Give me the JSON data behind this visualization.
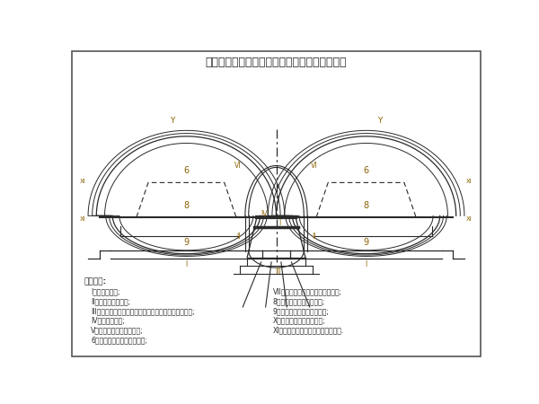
{
  "title": "连拱隧道中导洞法合阶分步开挖施工作业程序图",
  "title_fontsize": 9,
  "bg_color": "#ffffff",
  "line_color": "#2a2a2a",
  "label_color": "#8B6000",
  "legend_header": "图例序号:",
  "legend_left": [
    "I、中导洞开挖;",
    "II、中导洞初期支护;",
    "III、基底注浆锚杆施作，灌注中墙及中墙顶部回填处理;",
    "IV、中墙侧支护;",
    "V、左（右）主洞超前支护;",
    "6、左（右）主洞上台阶开挖;"
  ],
  "legend_right": [
    "VII、左（右）主洞上台阶初期支护;",
    "8、主洞上台阶核心土开挖;",
    "9、左（右）主洞下台阶开挖;",
    "X、左（右）主洞仰拱衬砌;",
    "XI、全断面喷注左（右）洞二次衬砌."
  ]
}
